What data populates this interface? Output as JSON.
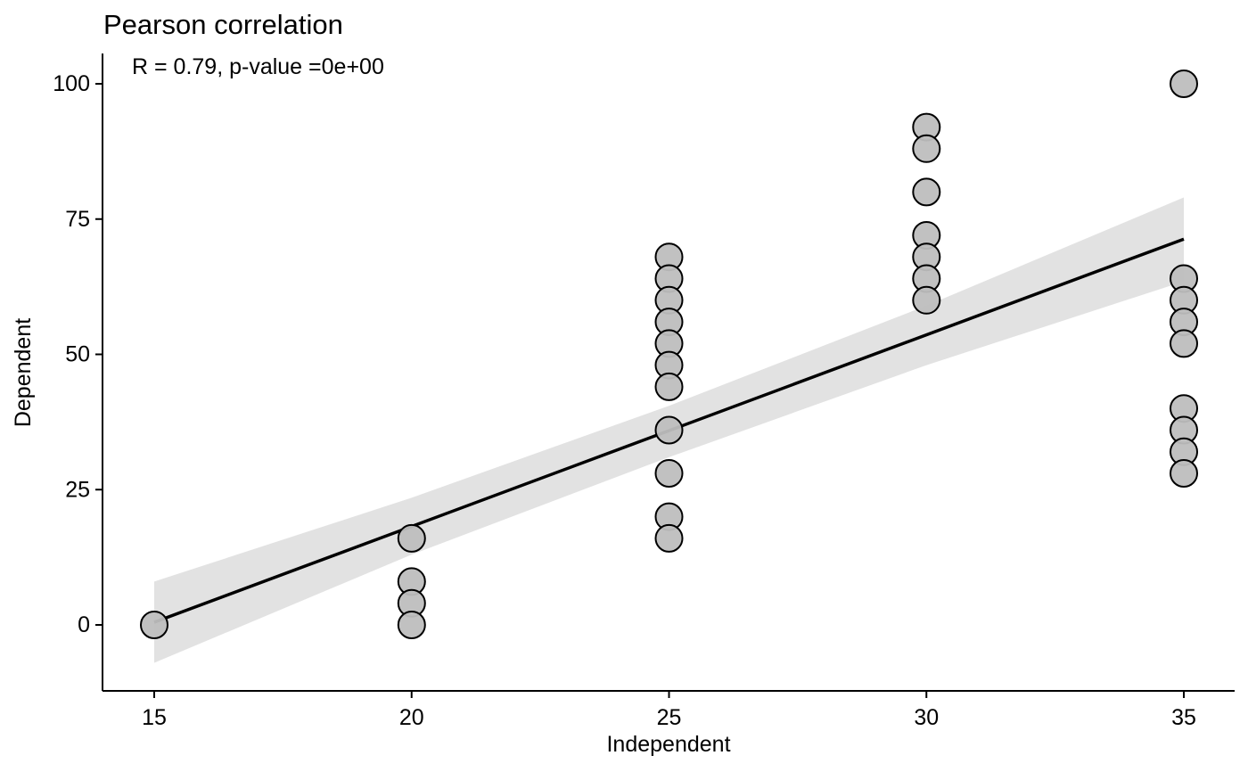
{
  "chart_data": {
    "type": "scatter",
    "title": "Pearson correlation",
    "xlabel": "Independent",
    "ylabel": "Dependent",
    "annotation": "R = 0.79, p-value =0e+00",
    "xlim": [
      14,
      36.5
    ],
    "ylim": [
      -12,
      105
    ],
    "xticks": [
      15,
      20,
      25,
      30,
      35
    ],
    "yticks": [
      0,
      25,
      50,
      75,
      100
    ],
    "grid": false,
    "points": [
      {
        "x": 15,
        "y": 0
      },
      {
        "x": 20,
        "y": 16
      },
      {
        "x": 20,
        "y": 8
      },
      {
        "x": 20,
        "y": 4
      },
      {
        "x": 20,
        "y": 0
      },
      {
        "x": 25,
        "y": 68
      },
      {
        "x": 25,
        "y": 64
      },
      {
        "x": 25,
        "y": 60
      },
      {
        "x": 25,
        "y": 56
      },
      {
        "x": 25,
        "y": 52
      },
      {
        "x": 25,
        "y": 48
      },
      {
        "x": 25,
        "y": 44
      },
      {
        "x": 25,
        "y": 36
      },
      {
        "x": 25,
        "y": 28
      },
      {
        "x": 25,
        "y": 20
      },
      {
        "x": 25,
        "y": 16
      },
      {
        "x": 30,
        "y": 92
      },
      {
        "x": 30,
        "y": 88
      },
      {
        "x": 30,
        "y": 80
      },
      {
        "x": 30,
        "y": 72
      },
      {
        "x": 30,
        "y": 68
      },
      {
        "x": 30,
        "y": 64
      },
      {
        "x": 30,
        "y": 60
      },
      {
        "x": 35,
        "y": 100
      },
      {
        "x": 35,
        "y": 64
      },
      {
        "x": 35,
        "y": 60
      },
      {
        "x": 35,
        "y": 56
      },
      {
        "x": 35,
        "y": 52
      },
      {
        "x": 35,
        "y": 40
      },
      {
        "x": 35,
        "y": 36
      },
      {
        "x": 35,
        "y": 32
      },
      {
        "x": 35,
        "y": 28
      }
    ],
    "regression_line": {
      "x": [
        15,
        35
      ],
      "y": [
        0.5,
        71.3
      ]
    },
    "confidence_band": {
      "x": [
        15,
        20,
        25,
        30,
        35
      ],
      "lower": [
        -7,
        13,
        31,
        48,
        63.5
      ],
      "upper": [
        8,
        23.5,
        40.5,
        59,
        79
      ]
    },
    "colors": {
      "point_fill": "#bebebe",
      "point_stroke": "#000000",
      "line": "#000000",
      "band": "#d9d9d9"
    }
  }
}
